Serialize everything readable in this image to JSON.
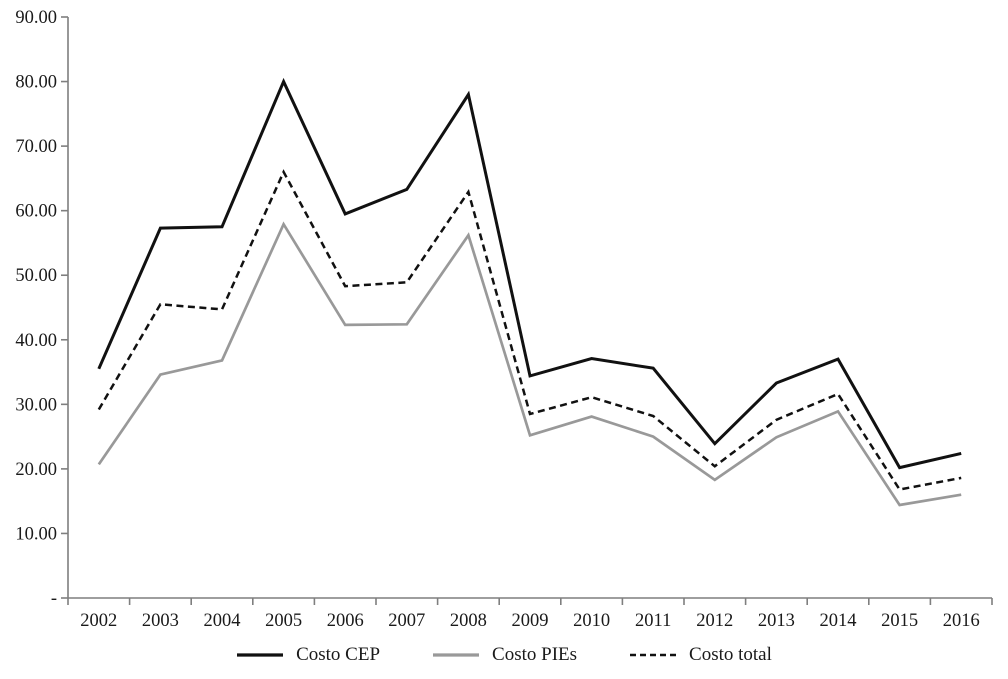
{
  "chart_data": {
    "type": "line",
    "title": "",
    "xlabel": "",
    "ylabel": "",
    "categories": [
      "2002",
      "2003",
      "2004",
      "2005",
      "2006",
      "2007",
      "2008",
      "2009",
      "2010",
      "2011",
      "2012",
      "2013",
      "2014",
      "2015",
      "2016"
    ],
    "series": [
      {
        "name": "Costo CEP",
        "color": "#111111",
        "style": "solid",
        "values": [
          35.5,
          57.3,
          57.5,
          80.0,
          59.5,
          63.3,
          78.0,
          34.4,
          37.1,
          35.6,
          23.9,
          33.3,
          37.0,
          20.2,
          22.4
        ]
      },
      {
        "name": "Costo PIEs",
        "color": "#999999",
        "style": "solid",
        "values": [
          20.7,
          34.6,
          36.8,
          57.9,
          42.3,
          42.4,
          56.2,
          25.2,
          28.1,
          25.0,
          18.3,
          24.9,
          28.9,
          14.4,
          16.0
        ]
      },
      {
        "name": "Costo total",
        "color": "#111111",
        "style": "dashed",
        "values": [
          29.2,
          45.5,
          44.7,
          66.0,
          48.3,
          48.9,
          62.9,
          28.5,
          31.1,
          28.2,
          20.4,
          27.6,
          31.6,
          16.8,
          18.6
        ]
      }
    ],
    "ylim": [
      0,
      90
    ],
    "y_tick_interval": 10,
    "y_tick_labels": [
      "-",
      "10.00",
      "20.00",
      "30.00",
      "40.00",
      "50.00",
      "60.00",
      "70.00",
      "80.00",
      "90.00"
    ],
    "grid": "off",
    "legend_position": "bottom",
    "axis_color": "#7f7f7f",
    "text_color": "#1a1a1a"
  }
}
